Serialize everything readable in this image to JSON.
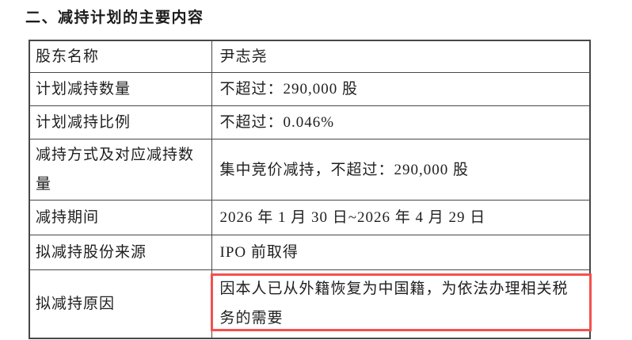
{
  "document": {
    "section_title": "二、减持计划的主要内容"
  },
  "table": {
    "rows": [
      {
        "label": "股东名称",
        "value": "尹志尧",
        "highlighted": false
      },
      {
        "label": "计划减持数量",
        "value": "不超过：290,000 股",
        "highlighted": false
      },
      {
        "label": "计划减持比例",
        "value": "不超过：0.046%",
        "highlighted": false
      },
      {
        "label": "减持方式及对应减持数量",
        "value": "集中竞价减持，不超过：290,000 股",
        "highlighted": false
      },
      {
        "label": "减持期间",
        "value": "2026 年 1 月 30 日~2026 年 4 月 29 日",
        "highlighted": false
      },
      {
        "label": "拟减持股份来源",
        "value": "IPO 前取得",
        "highlighted": false
      },
      {
        "label": "拟减持原因",
        "value": "因本人已从外籍恢复为中国籍，为依法办理相关税务的需要",
        "highlighted": true
      }
    ]
  },
  "colors": {
    "highlight_border": "#f4504e",
    "table_border": "#474747",
    "text": "#1f1f1f",
    "background": "#ffffff"
  }
}
